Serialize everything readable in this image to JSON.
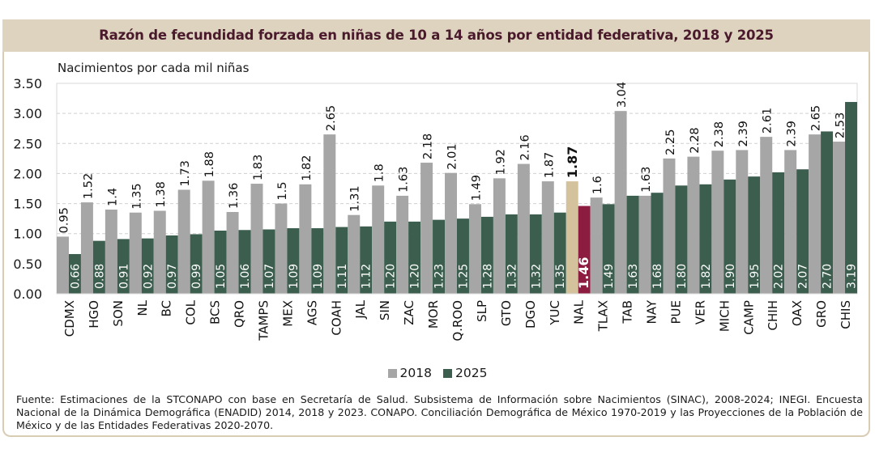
{
  "chart_data": {
    "type": "bar",
    "title": "Razón de fecundidad forzada en niñas de 10 a 14 años por entidad federativa, 2018 y 2025",
    "ylabel": "Nacimientos por cada mil niñas",
    "xlabel": "",
    "ylim": [
      0,
      3.5
    ],
    "yticks": [
      "0.00",
      "0.50",
      "1.00",
      "1.50",
      "2.00",
      "2.50",
      "3.00",
      "3.50"
    ],
    "ytick_values": [
      0,
      0.5,
      1.0,
      1.5,
      2.0,
      2.5,
      3.0,
      3.5
    ],
    "grid": true,
    "legend_position": "bottom",
    "highlight_category": "NAL",
    "categories": [
      "CDMX",
      "HGO",
      "SON",
      "NL",
      "BC",
      "COL",
      "BCS",
      "QRO",
      "TAMPS",
      "MEX",
      "AGS",
      "COAH",
      "JAL",
      "SIN",
      "ZAC",
      "MOR",
      "Q.ROO",
      "SLP",
      "GTO",
      "DGO",
      "YUC",
      "NAL",
      "TLAX",
      "TAB",
      "NAY",
      "PUE",
      "VER",
      "MICH",
      "CAMP",
      "CHIH",
      "OAX",
      "GRO",
      "CHIS"
    ],
    "series": [
      {
        "name": "2018",
        "color": "#a6a6a6",
        "highlight_color": "#d4c29c",
        "values": [
          0.95,
          1.52,
          1.4,
          1.35,
          1.38,
          1.73,
          1.88,
          1.36,
          1.83,
          1.5,
          1.82,
          2.65,
          1.31,
          1.8,
          1.63,
          2.18,
          2.01,
          1.49,
          1.92,
          2.16,
          1.87,
          1.87,
          1.6,
          3.04,
          1.63,
          2.25,
          2.28,
          2.38,
          2.39,
          2.61,
          2.39,
          2.65,
          2.53
        ],
        "labels": [
          "0.95",
          "1.52",
          "1.4",
          "1.35",
          "1.38",
          "1.73",
          "1.88",
          "1.36",
          "1.83",
          "1.5",
          "1.82",
          "2.65",
          "1.31",
          "1.8",
          "1.63",
          "2.18",
          "2.01",
          "1.49",
          "1.92",
          "2.16",
          "1.87",
          "1.87",
          "1.6",
          "3.04",
          "1.63",
          "2.25",
          "2.28",
          "2.38",
          "2.39",
          "2.61",
          "2.39",
          "2.65",
          "2.53"
        ]
      },
      {
        "name": "2025",
        "color": "#3b5e4f",
        "highlight_color": "#8c1c40",
        "values": [
          0.66,
          0.88,
          0.91,
          0.92,
          0.97,
          0.99,
          1.05,
          1.06,
          1.07,
          1.09,
          1.09,
          1.11,
          1.12,
          1.2,
          1.2,
          1.23,
          1.25,
          1.28,
          1.32,
          1.32,
          1.35,
          1.46,
          1.49,
          1.63,
          1.68,
          1.8,
          1.82,
          1.9,
          1.95,
          2.02,
          2.07,
          2.7,
          3.19
        ],
        "labels": [
          "0.66",
          "0.88",
          "0.91",
          "0.92",
          "0.97",
          "0.99",
          "1.05",
          "1.06",
          "1.07",
          "1.09",
          "1.09",
          "1.11",
          "1.12",
          "1.20",
          "1.20",
          "1.23",
          "1.25",
          "1.28",
          "1.32",
          "1.32",
          "1.35",
          "1.46",
          "1.49",
          "1.63",
          "1.68",
          "1.80",
          "1.82",
          "1.90",
          "1.95",
          "2.02",
          "2.07",
          "2.70",
          "3.19"
        ]
      }
    ]
  },
  "header": {
    "title": "Razón de fecundidad forzada en niñas de 10 a 14 años por entidad federativa, 2018 y 2025"
  },
  "axis": {
    "ylabel": "Nacimientos por cada mil niñas"
  },
  "legend": [
    {
      "label": "2018",
      "color": "#a6a6a6"
    },
    {
      "label": "2025",
      "color": "#3b5e4f"
    }
  ],
  "footnote": "Fuente: Estimaciones de la STCONAPO con base en Secretaría de Salud. Subsistema de Información sobre Nacimientos (SINAC), 2008-2024; INEGI. Encuesta Nacional de la Dinámica Demográfica (ENADID) 2014, 2018 y 2023. CONAPO. Conciliación Demográfica de México 1970-2019 y las Proyecciones de la Población de México y de las Entidades Federativas 2020-2070."
}
